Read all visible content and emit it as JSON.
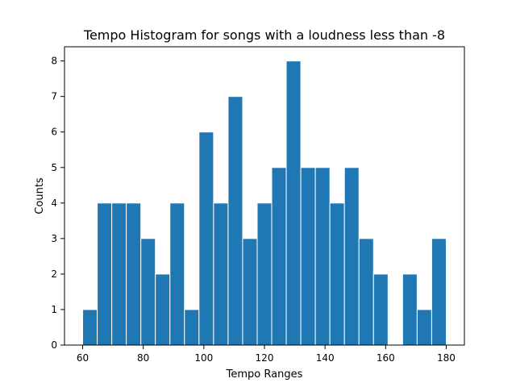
{
  "chart_data": {
    "type": "bar",
    "title": "Tempo Histogram for songs with a loudness less than -8",
    "xlabel": "Tempo Ranges",
    "ylabel": "Counts",
    "bin_start": 60,
    "bin_end": 180,
    "bin_count": 25,
    "values": [
      1,
      4,
      4,
      4,
      3,
      2,
      4,
      1,
      6,
      4,
      7,
      3,
      4,
      5,
      8,
      5,
      5,
      4,
      5,
      3,
      2,
      0,
      2,
      1,
      3
    ],
    "xlim": [
      54,
      186
    ],
    "ylim": [
      0,
      8.4
    ],
    "xticks": [
      60,
      80,
      100,
      120,
      140,
      160,
      180
    ],
    "yticks": [
      0,
      1,
      2,
      3,
      4,
      5,
      6,
      7,
      8
    ],
    "bar_color": "#1f77b4",
    "edge_color": "#ffffff",
    "grid": false,
    "legend": "none"
  }
}
